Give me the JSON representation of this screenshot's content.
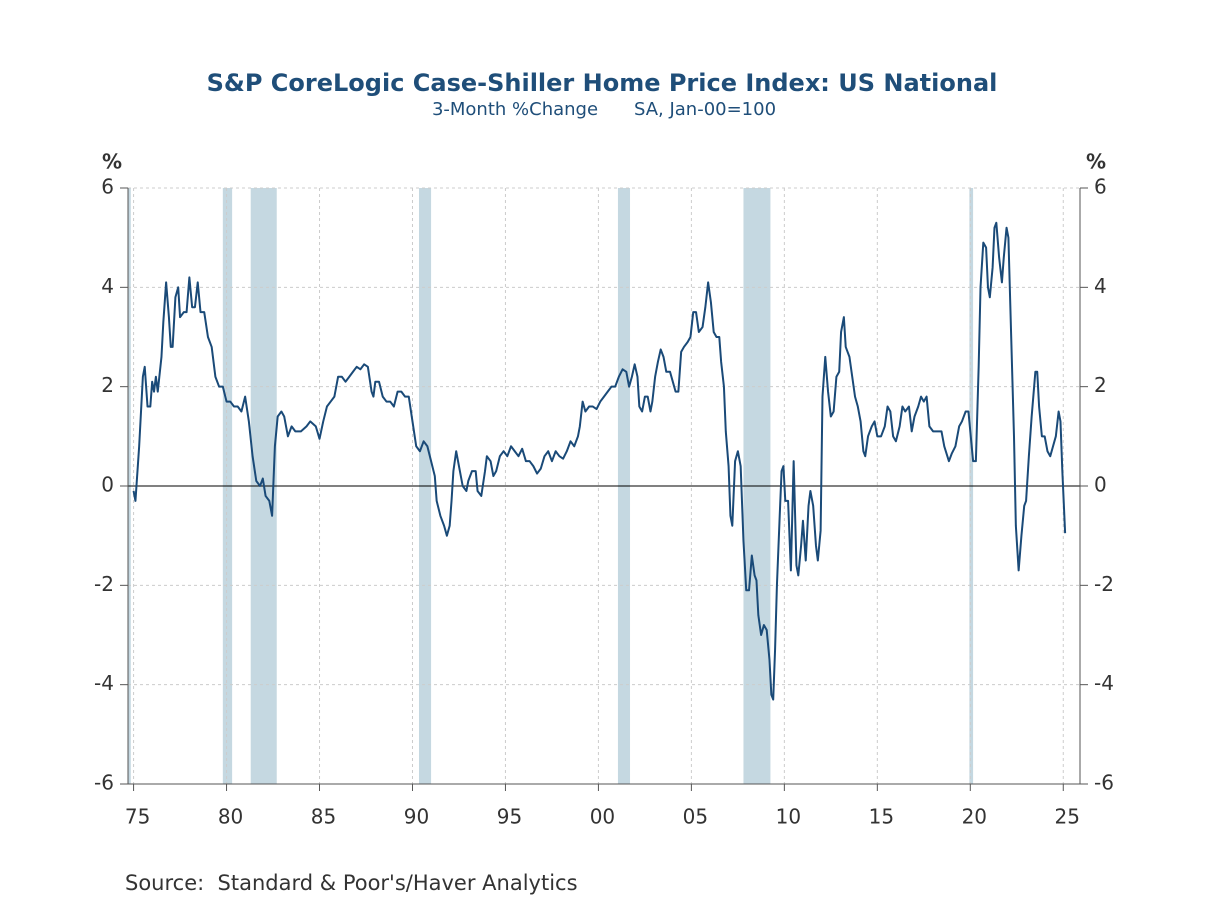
{
  "chart_data": {
    "type": "line",
    "title": "S&P CoreLogic Case-Shiller Home Price Index: US National",
    "subtitle": [
      "3-Month %Change",
      "SA, Jan-00=100"
    ],
    "ylabel": "%",
    "y2label": "%",
    "source": "Source:  Standard & Poor's/Haver Analytics",
    "color": "#1a4a78",
    "recession_color": "#c5d8e1",
    "grid": true,
    "xlim": [
      1974.7,
      2025.9
    ],
    "ylim": [
      -6,
      6
    ],
    "y2lim": [
      -6,
      6
    ],
    "yticks": [
      -6,
      -4,
      -2,
      0,
      2,
      4,
      6
    ],
    "y2ticks": [
      -6,
      -4,
      -2,
      0,
      2,
      4,
      6
    ],
    "xticks": [
      {
        "value": 1975,
        "label": "75"
      },
      {
        "value": 1980,
        "label": "80"
      },
      {
        "value": 1985,
        "label": "85"
      },
      {
        "value": 1990,
        "label": "90"
      },
      {
        "value": 1995,
        "label": "95"
      },
      {
        "value": 2000,
        "label": "00"
      },
      {
        "value": 2005,
        "label": "05"
      },
      {
        "value": 2010,
        "label": "10"
      },
      {
        "value": 2015,
        "label": "15"
      },
      {
        "value": 2020,
        "label": "20"
      },
      {
        "value": 2025,
        "label": "25"
      }
    ],
    "recessions": [
      [
        1974.7,
        1974.85
      ],
      [
        1979.8,
        1980.3
      ],
      [
        1981.3,
        1982.7
      ],
      [
        1990.35,
        1991.0
      ],
      [
        2001.05,
        2001.7
      ],
      [
        2007.8,
        2009.25
      ],
      [
        2019.95,
        2020.15
      ]
    ],
    "x": [
      1975.0,
      1975.1,
      1975.3,
      1975.5,
      1975.6,
      1975.75,
      1975.9,
      1976.0,
      1976.1,
      1976.2,
      1976.3,
      1976.5,
      1976.6,
      1976.75,
      1976.9,
      1977.0,
      1977.1,
      1977.25,
      1977.4,
      1977.5,
      1977.7,
      1977.85,
      1978.0,
      1978.15,
      1978.3,
      1978.45,
      1978.6,
      1978.8,
      1979.0,
      1979.2,
      1979.4,
      1979.6,
      1979.8,
      1980.0,
      1980.2,
      1980.4,
      1980.6,
      1980.8,
      1981.0,
      1981.2,
      1981.4,
      1981.6,
      1981.8,
      1981.95,
      1982.1,
      1982.3,
      1982.45,
      1982.6,
      1982.75,
      1982.95,
      1983.1,
      1983.3,
      1983.5,
      1983.7,
      1984.0,
      1984.3,
      1984.5,
      1984.8,
      1985.0,
      1985.2,
      1985.4,
      1985.6,
      1985.8,
      1986.0,
      1986.2,
      1986.4,
      1986.6,
      1986.8,
      1987.0,
      1987.2,
      1987.4,
      1987.6,
      1987.8,
      1987.9,
      1988.0,
      1988.2,
      1988.4,
      1988.6,
      1988.8,
      1989.0,
      1989.2,
      1989.4,
      1989.6,
      1989.8,
      1990.0,
      1990.2,
      1990.4,
      1990.6,
      1990.8,
      1991.0,
      1991.2,
      1991.3,
      1991.5,
      1991.7,
      1991.85,
      1992.0,
      1992.1,
      1992.2,
      1992.35,
      1992.5,
      1992.7,
      1992.9,
      1993.0,
      1993.2,
      1993.4,
      1993.5,
      1993.7,
      1993.9,
      1994.0,
      1994.2,
      1994.35,
      1994.5,
      1994.7,
      1994.9,
      1995.1,
      1995.3,
      1995.5,
      1995.7,
      1995.9,
      1996.1,
      1996.3,
      1996.5,
      1996.7,
      1996.9,
      1997.1,
      1997.3,
      1997.5,
      1997.7,
      1997.9,
      1998.1,
      1998.3,
      1998.5,
      1998.7,
      1998.9,
      1999.0,
      1999.15,
      1999.3,
      1999.5,
      1999.7,
      1999.9,
      2000.1,
      2000.3,
      2000.5,
      2000.7,
      2000.9,
      2001.1,
      2001.3,
      2001.5,
      2001.65,
      2001.8,
      2001.95,
      2002.1,
      2002.2,
      2002.35,
      2002.5,
      2002.65,
      2002.8,
      2002.9,
      2003.05,
      2003.2,
      2003.35,
      2003.5,
      2003.65,
      2003.85,
      2004.0,
      2004.15,
      2004.3,
      2004.45,
      2004.6,
      2004.8,
      2004.95,
      2005.1,
      2005.25,
      2005.4,
      2005.6,
      2005.75,
      2005.9,
      2006.05,
      2006.2,
      2006.35,
      2006.5,
      2006.6,
      2006.75,
      2006.85,
      2007.0,
      2007.1,
      2007.2,
      2007.35,
      2007.5,
      2007.65,
      2007.8,
      2007.95,
      2008.1,
      2008.25,
      2008.4,
      2008.5,
      2008.6,
      2008.75,
      2008.9,
      2009.05,
      2009.2,
      2009.3,
      2009.4,
      2009.5,
      2009.6,
      2009.75,
      2009.85,
      2009.95,
      2010.05,
      2010.2,
      2010.35,
      2010.5,
      2010.65,
      2010.75,
      2010.9,
      2011.0,
      2011.15,
      2011.3,
      2011.4,
      2011.55,
      2011.7,
      2011.8,
      2011.95,
      2012.05,
      2012.2,
      2012.35,
      2012.5,
      2012.65,
      2012.8,
      2012.95,
      2013.05,
      2013.2,
      2013.3,
      2013.5,
      2013.65,
      2013.8,
      2013.95,
      2014.1,
      2014.25,
      2014.35,
      2014.5,
      2014.7,
      2014.85,
      2015.0,
      2015.2,
      2015.4,
      2015.55,
      2015.7,
      2015.85,
      2016.0,
      2016.2,
      2016.35,
      2016.5,
      2016.7,
      2016.85,
      2017.0,
      2017.2,
      2017.35,
      2017.5,
      2017.65,
      2017.8,
      2018.0,
      2018.2,
      2018.45,
      2018.6,
      2018.85,
      2019.0,
      2019.2,
      2019.4,
      2019.55,
      2019.75,
      2019.9,
      2020.05,
      2020.15,
      2020.3,
      2020.45,
      2020.55,
      2020.7,
      2020.85,
      2020.95,
      2021.05,
      2021.2,
      2021.3,
      2021.4,
      2021.55,
      2021.7,
      2021.8,
      2021.95,
      2022.05,
      2022.2,
      2022.35,
      2022.45,
      2022.6,
      2022.75,
      2022.9,
      2023.0,
      2023.15,
      2023.3,
      2023.5,
      2023.6,
      2023.7,
      2023.85,
      2024.0,
      2024.15,
      2024.3,
      2024.45,
      2024.6,
      2024.75,
      2024.85,
      2024.95,
      2025.1
    ],
    "values": [
      -0.1,
      -0.3,
      0.8,
      2.2,
      2.4,
      1.6,
      1.6,
      2.1,
      1.9,
      2.2,
      1.9,
      2.6,
      3.3,
      4.1,
      3.4,
      2.8,
      2.8,
      3.8,
      4.0,
      3.4,
      3.5,
      3.5,
      4.2,
      3.6,
      3.6,
      4.1,
      3.5,
      3.5,
      3.0,
      2.8,
      2.2,
      2.0,
      2.0,
      1.7,
      1.7,
      1.6,
      1.6,
      1.5,
      1.8,
      1.3,
      0.6,
      0.1,
      0.0,
      0.15,
      -0.2,
      -0.3,
      -0.6,
      0.8,
      1.4,
      1.5,
      1.4,
      1.0,
      1.2,
      1.1,
      1.1,
      1.2,
      1.3,
      1.2,
      0.95,
      1.3,
      1.6,
      1.7,
      1.8,
      2.2,
      2.2,
      2.1,
      2.2,
      2.3,
      2.4,
      2.35,
      2.45,
      2.4,
      1.9,
      1.8,
      2.1,
      2.1,
      1.8,
      1.7,
      1.7,
      1.6,
      1.9,
      1.9,
      1.8,
      1.8,
      1.3,
      0.8,
      0.7,
      0.9,
      0.8,
      0.5,
      0.2,
      -0.3,
      -0.6,
      -0.8,
      -1.0,
      -0.8,
      -0.3,
      0.3,
      0.7,
      0.4,
      0.0,
      -0.1,
      0.1,
      0.3,
      0.3,
      -0.1,
      -0.2,
      0.3,
      0.6,
      0.5,
      0.2,
      0.3,
      0.6,
      0.7,
      0.6,
      0.8,
      0.7,
      0.6,
      0.75,
      0.5,
      0.5,
      0.4,
      0.25,
      0.35,
      0.6,
      0.7,
      0.5,
      0.7,
      0.6,
      0.55,
      0.7,
      0.9,
      0.8,
      1.0,
      1.2,
      1.7,
      1.5,
      1.6,
      1.6,
      1.55,
      1.7,
      1.8,
      1.9,
      2.0,
      2.0,
      2.2,
      2.35,
      2.3,
      2.0,
      2.2,
      2.45,
      2.2,
      1.6,
      1.5,
      1.8,
      1.8,
      1.5,
      1.7,
      2.2,
      2.5,
      2.75,
      2.6,
      2.3,
      2.3,
      2.1,
      1.9,
      1.9,
      2.7,
      2.8,
      2.9,
      3.0,
      3.5,
      3.5,
      3.1,
      3.2,
      3.6,
      4.1,
      3.7,
      3.1,
      3.0,
      3.0,
      2.5,
      2.0,
      1.1,
      0.4,
      -0.6,
      -0.8,
      0.5,
      0.7,
      0.4,
      -1.1,
      -2.1,
      -2.1,
      -1.4,
      -1.8,
      -1.9,
      -2.6,
      -3.0,
      -2.8,
      -2.9,
      -3.5,
      -4.2,
      -4.3,
      -3.3,
      -2.0,
      -0.6,
      0.3,
      0.4,
      -0.3,
      -0.3,
      -1.7,
      0.5,
      -1.6,
      -1.8,
      -1.2,
      -0.7,
      -1.5,
      -0.4,
      -0.1,
      -0.4,
      -1.2,
      -1.5,
      -0.9,
      1.8,
      2.6,
      1.9,
      1.4,
      1.5,
      2.2,
      2.3,
      3.1,
      3.4,
      2.8,
      2.6,
      2.2,
      1.8,
      1.6,
      1.3,
      0.7,
      0.6,
      1.0,
      1.2,
      1.3,
      1.0,
      1.0,
      1.2,
      1.6,
      1.5,
      1.0,
      0.9,
      1.2,
      1.6,
      1.5,
      1.6,
      1.1,
      1.4,
      1.6,
      1.8,
      1.7,
      1.8,
      1.2,
      1.1,
      1.1,
      1.1,
      0.8,
      0.5,
      0.65,
      0.8,
      1.2,
      1.3,
      1.5,
      1.5,
      0.9,
      0.5,
      0.5,
      2.4,
      4.0,
      4.9,
      4.8,
      4.0,
      3.8,
      4.4,
      5.2,
      5.3,
      4.6,
      4.1,
      4.6,
      5.2,
      5.0,
      3.0,
      1.0,
      -0.8,
      -1.7,
      -1.0,
      -0.4,
      -0.3,
      0.6,
      1.4,
      2.3,
      2.3,
      1.6,
      1.0,
      1.0,
      0.7,
      0.6,
      0.8,
      1.0,
      1.5,
      1.3,
      0.3,
      -0.95
    ]
  }
}
